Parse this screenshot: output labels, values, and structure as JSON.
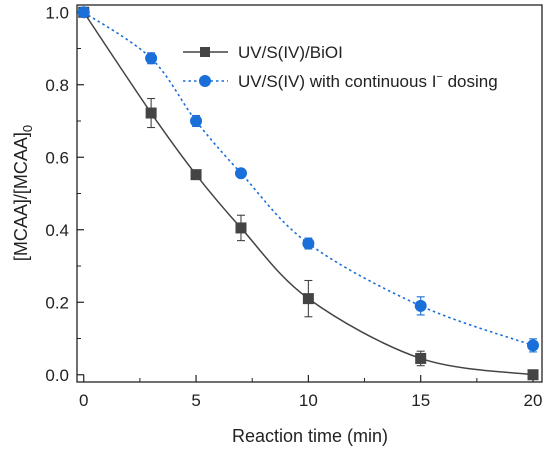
{
  "chart_data": {
    "type": "line",
    "xlabel": "Reaction time (min)",
    "ylabel": {
      "main": "[MCAA]/[MCAA]",
      "sub": "0"
    },
    "xlim": [
      -0.3,
      20.4
    ],
    "ylim": [
      -0.02,
      1.02
    ],
    "x_ticks": [
      "0",
      "5",
      "10",
      "15",
      "20"
    ],
    "y_ticks": [
      "0.0",
      "0.2",
      "0.4",
      "0.6",
      "0.8",
      "1.0"
    ],
    "legend_position": "top-right",
    "series": [
      {
        "name": "UV/S(IV)/BiOI",
        "marker": "square",
        "line": "solid",
        "color": "#444444",
        "x": [
          0,
          3,
          5,
          7,
          10,
          15,
          20
        ],
        "y": [
          1.0,
          0.722,
          0.552,
          0.405,
          0.21,
          0.045,
          0.0
        ],
        "err": [
          0.0,
          0.04,
          0.0,
          0.035,
          0.05,
          0.02,
          0.0
        ]
      },
      {
        "name_parts": [
          "UV/S(IV) with continuous I",
          "−",
          " dosing"
        ],
        "marker": "circle",
        "line": "dotted",
        "color": "#1a6fd8",
        "x": [
          0,
          3,
          5,
          7,
          10,
          15,
          20
        ],
        "y": [
          1.0,
          0.873,
          0.7,
          0.556,
          0.362,
          0.19,
          0.081
        ],
        "err": [
          0.0,
          0.015,
          0.015,
          0.01,
          0.015,
          0.025,
          0.018
        ]
      }
    ]
  }
}
